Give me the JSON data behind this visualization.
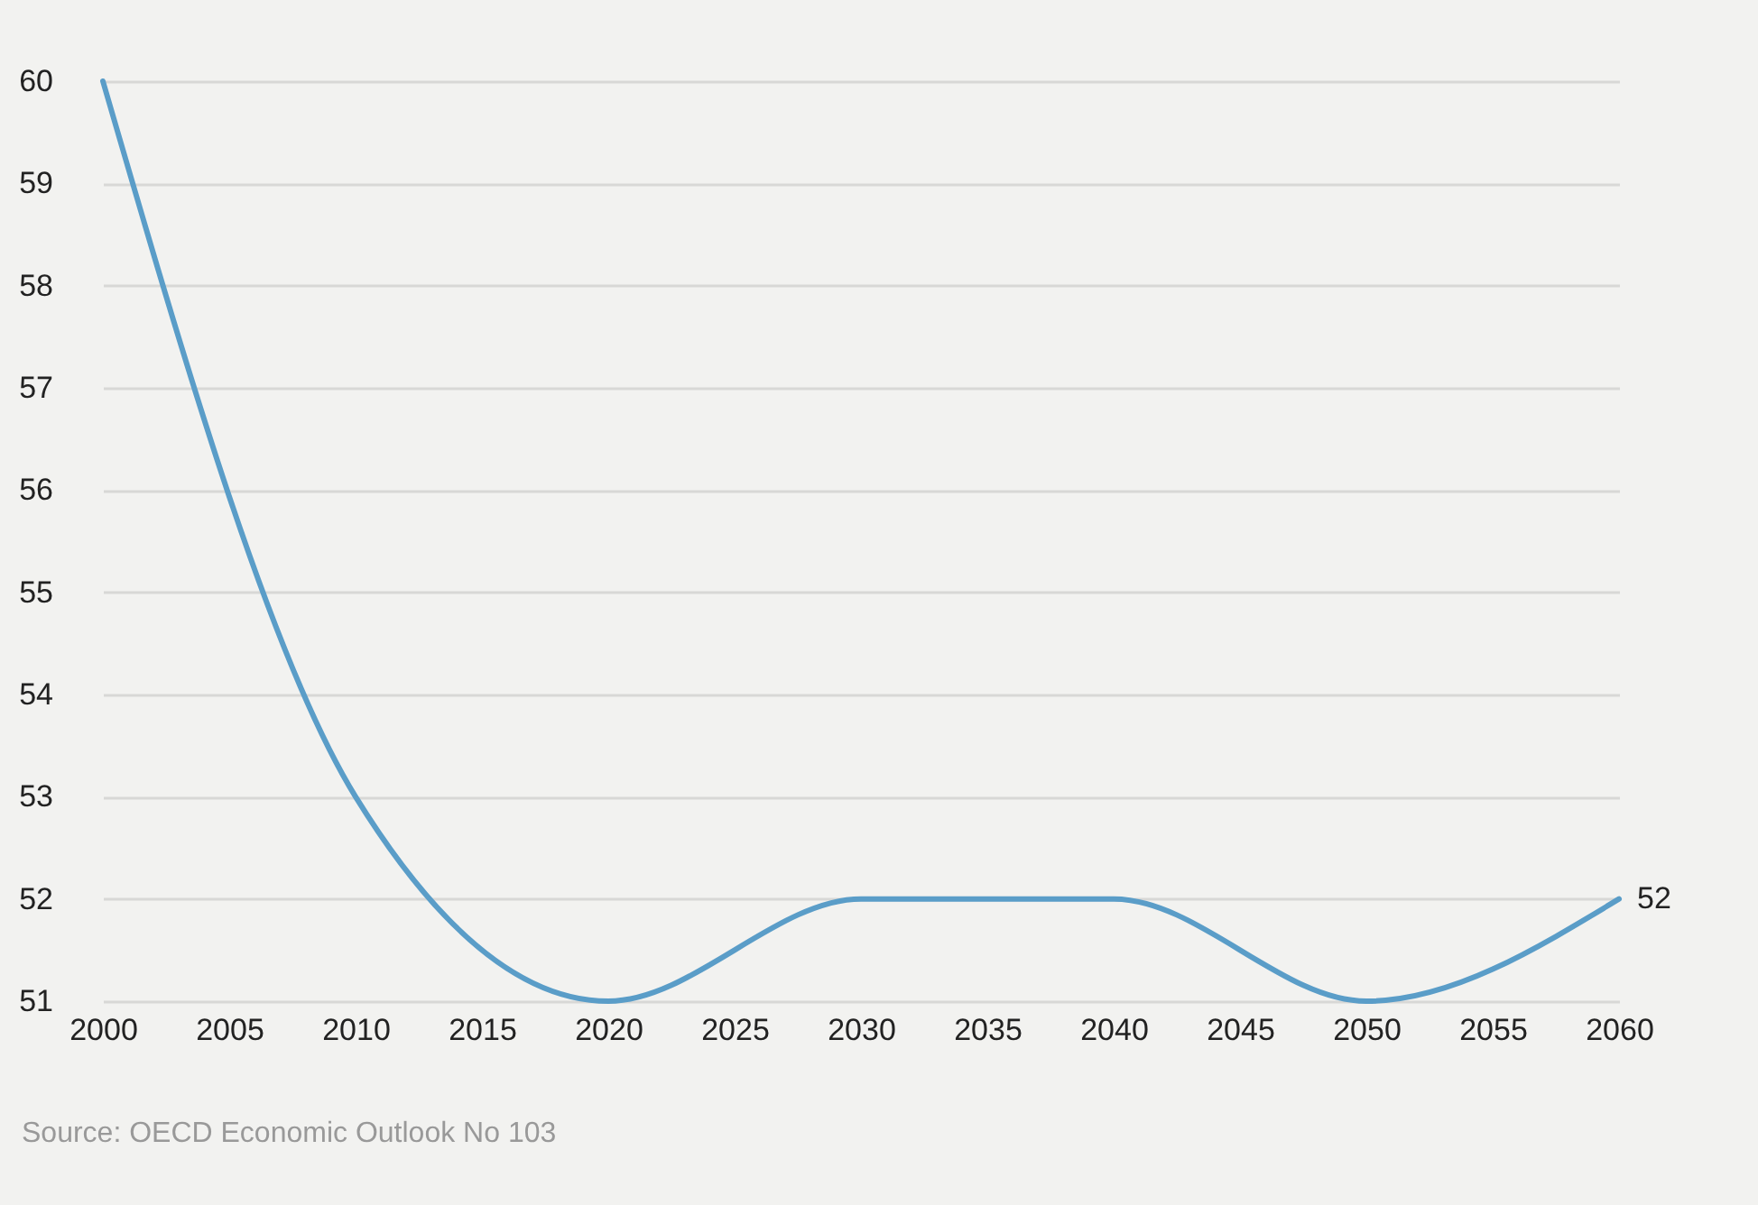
{
  "chart_data": {
    "type": "line",
    "x": [
      2000,
      2010,
      2020,
      2030,
      2040,
      2050,
      2060
    ],
    "series": [
      {
        "color": "#5a9dc8",
        "values": [
          60,
          53,
          51,
          52,
          52,
          51,
          52
        ],
        "value_labels": [
          null,
          null,
          null,
          null,
          null,
          null,
          "52"
        ]
      }
    ],
    "xlim": [
      2000,
      2060
    ],
    "xticks": [
      2000,
      2005,
      2010,
      2015,
      2020,
      2025,
      2030,
      2035,
      2040,
      2045,
      2050,
      2055,
      2060
    ],
    "ylim": [
      51,
      60
    ],
    "yticks": [
      51,
      52,
      53,
      54,
      55,
      56,
      57,
      58,
      59,
      60
    ],
    "grid": "y",
    "legend": false,
    "annotations": [
      "Source: OECD Economic Outlook No 103"
    ]
  }
}
